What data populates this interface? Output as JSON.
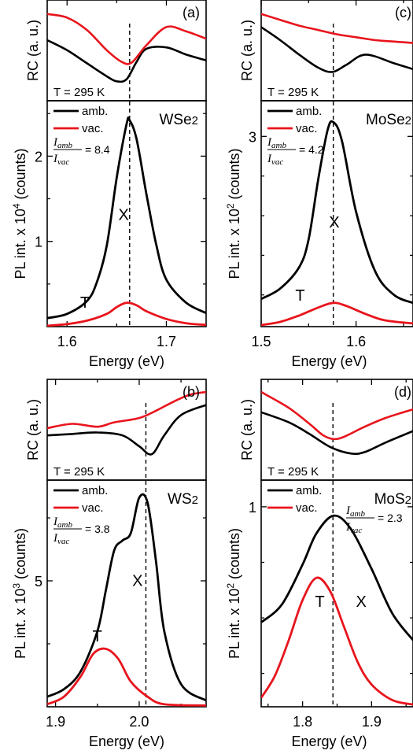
{
  "chart_data": [
    {
      "type": "line",
      "panel_label": "(a)",
      "material": "WSe2",
      "material_base": "WSe",
      "material_sub": "2",
      "rc": {
        "ylabel": "RC (a. u.)",
        "temperature": "T = 295 K",
        "series": [
          {
            "name": "amb.",
            "color": "#000000",
            "x": [
              1.58,
              1.6,
              1.62,
              1.64,
              1.65,
              1.66,
              1.67,
              1.68,
              1.7,
              1.72,
              1.74
            ],
            "y": [
              0.62,
              0.48,
              0.3,
              0.12,
              0.05,
              0.08,
              0.32,
              0.5,
              0.52,
              0.42,
              0.34
            ]
          },
          {
            "name": "vac.",
            "color": "#e8141c",
            "x": [
              1.58,
              1.6,
              1.62,
              1.64,
              1.655,
              1.665,
              1.68,
              1.7,
              1.72,
              1.74
            ],
            "y": [
              0.98,
              0.93,
              0.76,
              0.48,
              0.32,
              0.31,
              0.55,
              0.8,
              0.74,
              0.64
            ]
          }
        ]
      },
      "pl": {
        "ylabel": "PL int. x 10⁴ (counts)",
        "ylabel_base": "PL int. x 10",
        "ylabel_exp": "4",
        "ylabel_tail": " (counts)",
        "xlabel": "Energy (eV)",
        "xlim": [
          1.58,
          1.74
        ],
        "ylim": [
          0,
          2.65
        ],
        "xticks": [
          1.6,
          1.7
        ],
        "xticklabels": [
          "1.6",
          "1.7"
        ],
        "yticks": [
          1,
          2
        ],
        "yticklabels": [
          "1",
          "2"
        ],
        "peak_x": 1.663,
        "ratio_value": "= 8.4",
        "exciton_label": "X",
        "trion_label": "T",
        "series": [
          {
            "name": "amb.",
            "color": "#000000",
            "x": [
              1.58,
              1.6,
              1.62,
              1.63,
              1.64,
              1.65,
              1.66,
              1.663,
              1.67,
              1.68,
              1.69,
              1.7,
              1.72,
              1.74
            ],
            "y": [
              0.1,
              0.15,
              0.3,
              0.52,
              0.95,
              1.75,
              2.38,
              2.42,
              2.2,
              1.55,
              0.95,
              0.55,
              0.28,
              0.16
            ]
          },
          {
            "name": "vac.",
            "color": "#e8141c",
            "x": [
              1.58,
              1.6,
              1.62,
              1.64,
              1.65,
              1.66,
              1.67,
              1.68,
              1.7,
              1.72,
              1.74
            ],
            "y": [
              0.01,
              0.03,
              0.07,
              0.15,
              0.23,
              0.28,
              0.25,
              0.18,
              0.09,
              0.04,
              0.02
            ]
          }
        ]
      }
    },
    {
      "type": "line",
      "panel_label": "(c)",
      "material": "MoSe2",
      "material_base": "MoSe",
      "material_sub": "2",
      "rc": {
        "ylabel": "RC (a. u.)",
        "temperature": "T = 295 K",
        "series": [
          {
            "name": "amb.",
            "color": "#000000",
            "x": [
              1.5,
              1.52,
              1.54,
              1.56,
              1.575,
              1.59,
              1.61,
              1.64,
              1.66
            ],
            "y": [
              0.8,
              0.62,
              0.42,
              0.24,
              0.18,
              0.28,
              0.42,
              0.3,
              0.22
            ]
          },
          {
            "name": "vac.",
            "color": "#e8141c",
            "x": [
              1.5,
              1.52,
              1.54,
              1.56,
              1.58,
              1.6,
              1.62,
              1.64,
              1.66
            ],
            "y": [
              0.98,
              0.9,
              0.82,
              0.76,
              0.7,
              0.66,
              0.62,
              0.6,
              0.58
            ]
          }
        ]
      },
      "pl": {
        "ylabel": "PL int. x 10² (counts)",
        "ylabel_base": "PL int. x 10",
        "ylabel_exp": "2",
        "ylabel_tail": " (counts)",
        "xlabel": "Energy (eV)",
        "xlim": [
          1.5,
          1.66
        ],
        "ylim": [
          0.6,
          3.45
        ],
        "xticks": [
          1.5,
          1.6
        ],
        "xticklabels": [
          "1.5",
          "1.6"
        ],
        "yticks": [
          3
        ],
        "yticklabels": [
          "3"
        ],
        "peak_x": 1.576,
        "ratio_value": "= 4.2",
        "exciton_label": "X",
        "trion_label": "T",
        "series": [
          {
            "name": "amb.",
            "color": "#000000",
            "x": [
              1.5,
              1.52,
              1.54,
              1.55,
              1.56,
              1.57,
              1.576,
              1.585,
              1.6,
              1.62,
              1.64,
              1.66
            ],
            "y": [
              0.95,
              1.08,
              1.35,
              1.7,
              2.45,
              3.08,
              3.18,
              2.95,
              2.05,
              1.3,
              1.0,
              0.9
            ]
          },
          {
            "name": "vac.",
            "color": "#e8141c",
            "x": [
              1.5,
              1.52,
              1.54,
              1.56,
              1.576,
              1.59,
              1.61,
              1.63,
              1.66
            ],
            "y": [
              0.62,
              0.66,
              0.74,
              0.84,
              0.9,
              0.86,
              0.76,
              0.68,
              0.64
            ]
          }
        ]
      }
    },
    {
      "type": "line",
      "panel_label": "(b)",
      "material": "WS2",
      "material_base": "WS",
      "material_sub": "2",
      "rc": {
        "ylabel": "RC (a. u.)",
        "temperature": "T = 295 K",
        "series": [
          {
            "name": "amb.",
            "color": "#000000",
            "x": [
              1.89,
              1.92,
              1.95,
              1.98,
              2.0,
              2.015,
              2.03,
              2.05,
              2.08
            ],
            "y": [
              0.4,
              0.42,
              0.44,
              0.4,
              0.25,
              0.14,
              0.4,
              0.68,
              0.82
            ]
          },
          {
            "name": "vac.",
            "color": "#e8141c",
            "x": [
              1.89,
              1.92,
              1.95,
              1.97,
              2.0,
              2.02,
              2.04,
              2.06,
              2.08
            ],
            "y": [
              0.5,
              0.56,
              0.52,
              0.58,
              0.64,
              0.74,
              0.86,
              0.96,
              1.0
            ]
          }
        ]
      },
      "pl": {
        "ylabel": "PL int. x 10³ (counts)",
        "ylabel_base": "PL int. x 10",
        "ylabel_exp": "3",
        "ylabel_tail": " (counts)",
        "xlabel": "Energy (eV)",
        "xlim": [
          1.89,
          2.08
        ],
        "ylim": [
          0,
          9.0
        ],
        "xticks": [
          1.9,
          2.0
        ],
        "xticklabels": [
          "1.9",
          "2.0"
        ],
        "yticks": [
          5
        ],
        "yticklabels": [
          "5"
        ],
        "peak_x": 2.008,
        "ratio_value": "= 3.8",
        "exciton_label": "X",
        "trion_label": "T",
        "series": [
          {
            "name": "amb.",
            "color": "#000000",
            "x": [
              1.89,
              1.91,
              1.93,
              1.95,
              1.96,
              1.97,
              1.98,
              1.99,
              2.0,
              2.01,
              2.02,
              2.03,
              2.05,
              2.08
            ],
            "y": [
              0.4,
              0.7,
              1.4,
              3.0,
              4.6,
              6.2,
              6.6,
              6.9,
              8.3,
              8.1,
              5.8,
              3.0,
              0.9,
              0.25
            ]
          },
          {
            "name": "vac.",
            "color": "#e8141c",
            "x": [
              1.89,
              1.91,
              1.93,
              1.945,
              1.96,
              1.975,
              1.99,
              2.01,
              2.03,
              2.08
            ],
            "y": [
              0.1,
              0.4,
              1.2,
              2.1,
              2.3,
              1.9,
              1.0,
              0.4,
              0.1,
              0.05
            ]
          }
        ]
      }
    },
    {
      "type": "line",
      "panel_label": "(d)",
      "material": "MoS2",
      "material_base": "MoS",
      "material_sub": "2",
      "rc": {
        "ylabel": "RC (a. u.)",
        "temperature": "T = 295 K",
        "series": [
          {
            "name": "amb.",
            "color": "#000000",
            "x": [
              1.74,
              1.78,
              1.81,
              1.84,
              1.87,
              1.89,
              1.92,
              1.96
            ],
            "y": [
              0.72,
              0.58,
              0.42,
              0.24,
              0.15,
              0.17,
              0.3,
              0.46
            ]
          },
          {
            "name": "vac.",
            "color": "#e8141c",
            "x": [
              1.74,
              1.78,
              1.81,
              1.83,
              1.845,
              1.86,
              1.89,
              1.92,
              1.96
            ],
            "y": [
              1.0,
              0.78,
              0.56,
              0.4,
              0.35,
              0.38,
              0.52,
              0.64,
              0.76
            ]
          }
        ]
      },
      "pl": {
        "ylabel": "PL int. x 10² (counts)",
        "ylabel_base": "PL int. x 10",
        "ylabel_exp": "2",
        "ylabel_tail": " (counts)",
        "xlabel": "Energy (eV)",
        "xlim": [
          1.74,
          1.96
        ],
        "ylim": [
          0.1,
          1.12
        ],
        "xticks": [
          1.8,
          1.9
        ],
        "xticklabels": [
          "1.8",
          "1.9"
        ],
        "yticks": [
          1
        ],
        "yticklabels": [
          "1"
        ],
        "peak_x": 1.844,
        "ratio_value": "= 2.3",
        "exciton_label": "X",
        "trion_label": "T",
        "series": [
          {
            "name": "amb.",
            "color": "#000000",
            "x": [
              1.74,
              1.77,
              1.8,
              1.82,
              1.845,
              1.87,
              1.9,
              1.93,
              1.96
            ],
            "y": [
              0.48,
              0.56,
              0.74,
              0.88,
              0.96,
              0.9,
              0.72,
              0.52,
              0.4
            ]
          },
          {
            "name": "vac.",
            "color": "#e8141c",
            "x": [
              1.74,
              1.76,
              1.78,
              1.8,
              1.82,
              1.84,
              1.86,
              1.88,
              1.9,
              1.93,
              1.96
            ],
            "y": [
              0.14,
              0.24,
              0.4,
              0.58,
              0.68,
              0.62,
              0.46,
              0.3,
              0.2,
              0.13,
              0.11
            ]
          }
        ]
      }
    }
  ],
  "legend": {
    "amb": "amb.",
    "vac": "vac."
  },
  "ratio": {
    "numerator": "I",
    "numerator_sub": "amb",
    "denominator": "I",
    "denominator_sub": "vac"
  }
}
